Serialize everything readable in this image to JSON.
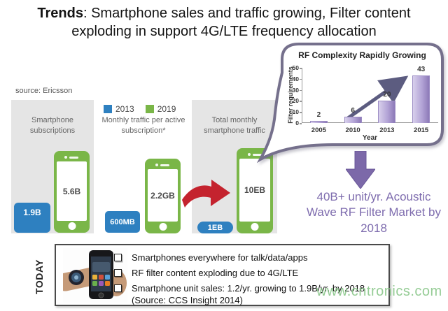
{
  "title": {
    "line1_bold": "Trends",
    "line1_rest": ": Smartphone sales and traffic growing, Filter content",
    "line2": "exploding in support 4G/LTE frequency allocation"
  },
  "source_label": "source: Ericsson",
  "legend": {
    "items": [
      {
        "label": "2013",
        "color": "#2e80c0"
      },
      {
        "label": "2019",
        "color": "#7ab648"
      }
    ]
  },
  "panels": [
    {
      "label": "Smartphone subscriptions",
      "value_2013": "1.9B",
      "value_2019": "5.6B"
    },
    {
      "label": "Monthly traffic per active subscription*",
      "value_2013": "600MB",
      "value_2019": "2.2GB"
    },
    {
      "label": "Total monthly smartphone traffic",
      "value_2013": "1EB",
      "value_2019": "10EB"
    }
  ],
  "chart_data": {
    "type": "bar",
    "title": "RF Complexity Rapidly Growing",
    "categories": [
      "2005",
      "2010",
      "2013",
      "2015"
    ],
    "values": [
      2,
      6,
      20,
      43
    ],
    "xlabel": "Year",
    "ylabel": "Filter requirements",
    "ylim": [
      0,
      50
    ],
    "yticks": [
      0,
      10,
      20,
      30,
      40,
      50
    ],
    "data_labels": true,
    "bar_color_gradient": [
      "#d8d0ec",
      "#8d7ab8"
    ],
    "annotation": "upward trend arrow",
    "legend_position": "none",
    "grid": false
  },
  "market_callout": {
    "text": "40B+ unit/yr. Acoustic Wave RF Filter Market by 2018",
    "arrow_color": "#7c69a9",
    "text_color": "#7e6cae"
  },
  "today": {
    "label": "TODAY",
    "bullets": [
      {
        "text": "Smartphones everywhere for talk/data/apps"
      },
      {
        "text": "RF filter content exploding due to 4G/LTE"
      },
      {
        "text": "Smartphone unit sales: 1.2/yr. growing to 1.9B/yr. by 2018",
        "source": "(Source: CCS Insight 2014)"
      }
    ]
  },
  "watermark": "www.cntronics.com",
  "colors": {
    "blue_2013": "#2e80c0",
    "green_2019": "#7ab648",
    "panel_gray": "#e5e5e5",
    "red_arrow": "#c4232e",
    "purple": "#7c69a9",
    "chart_border": "#75708c"
  }
}
